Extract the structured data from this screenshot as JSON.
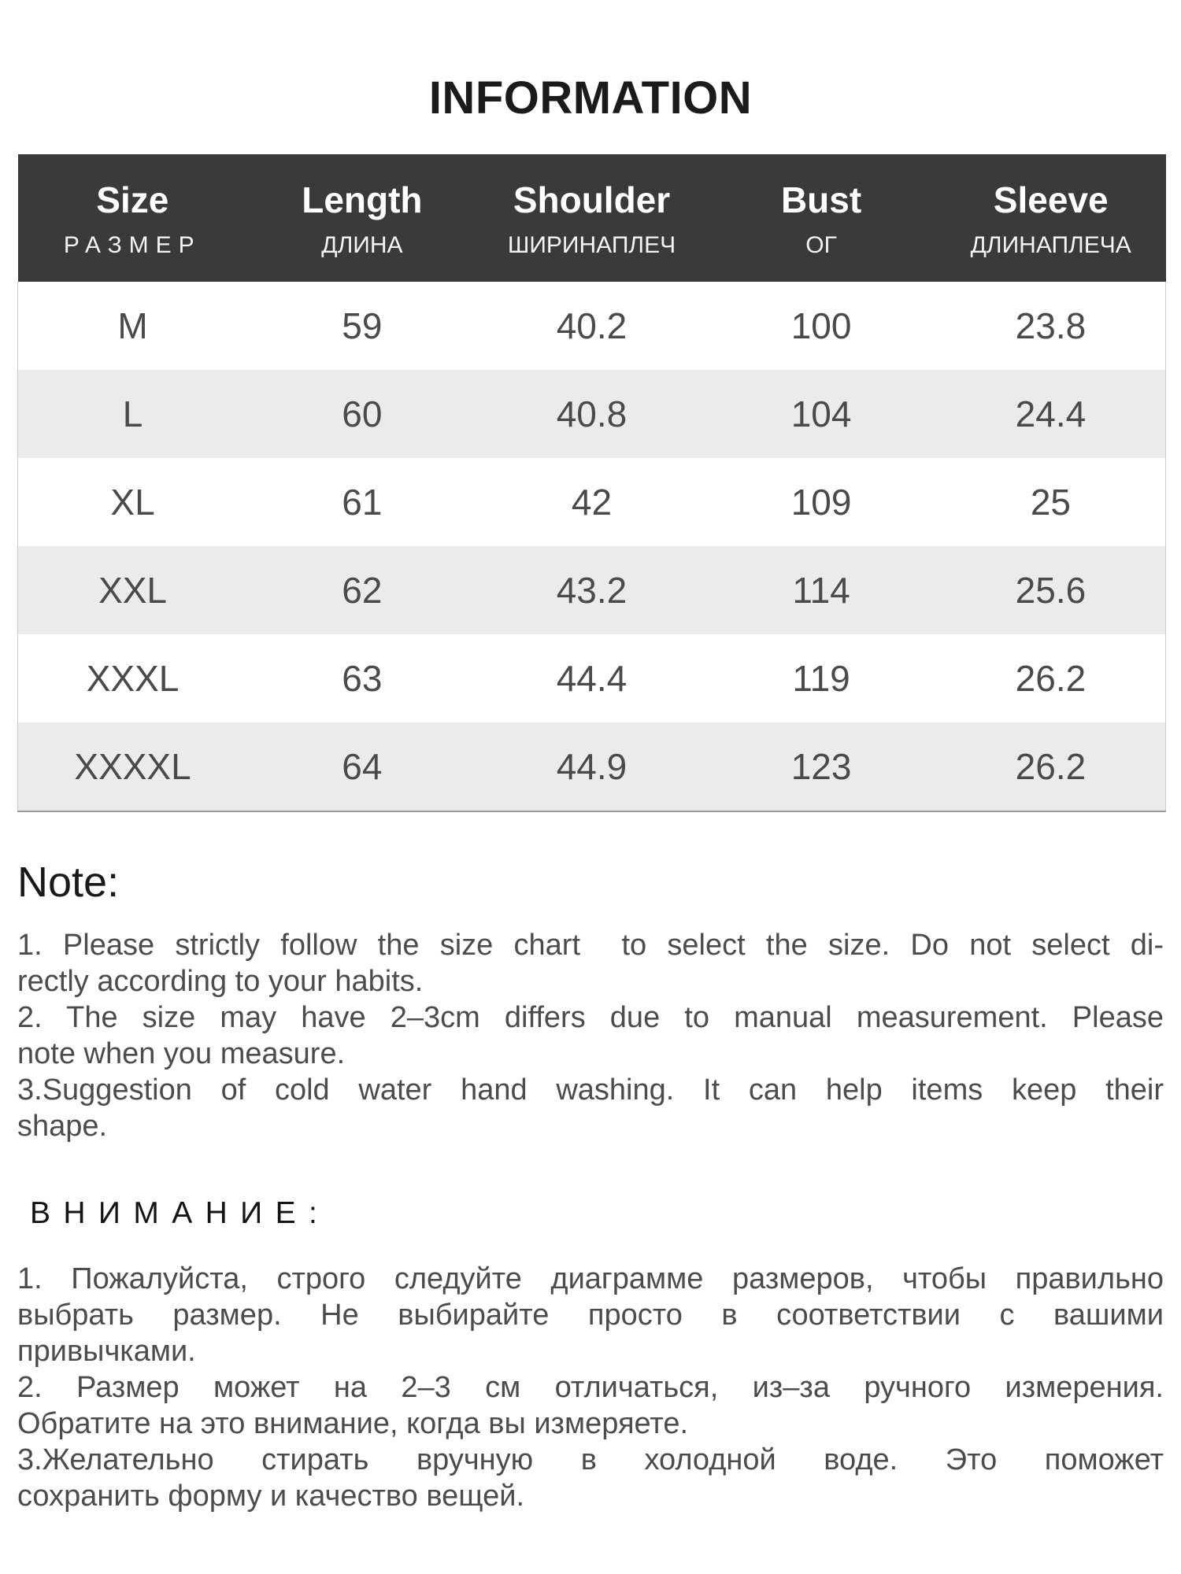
{
  "page": {
    "title": "INFORMATION"
  },
  "size_chart": {
    "columns": [
      {
        "en": "Size",
        "ru": "РАЗМЕР"
      },
      {
        "en": "Length",
        "ru": "ДЛИНА"
      },
      {
        "en": "Shoulder",
        "ru": "ШИРИНАПЛЕЧ"
      },
      {
        "en": "Bust",
        "ru": "ОГ"
      },
      {
        "en": "Sleeve",
        "ru": "ДЛИНАПЛЕЧА"
      }
    ],
    "rows": [
      [
        "M",
        "59",
        "40.2",
        "100",
        "23.8"
      ],
      [
        "L",
        "60",
        "40.8",
        "104",
        "24.4"
      ],
      [
        "XL",
        "61",
        "42",
        "109",
        "25"
      ],
      [
        "XXL",
        "62",
        "43.2",
        "114",
        "25.6"
      ],
      [
        "XXXL",
        "63",
        "44.4",
        "119",
        "26.2"
      ],
      [
        "XXXXL",
        "64",
        "44.9",
        "123",
        "26.2"
      ]
    ]
  },
  "note_en": {
    "heading": "Note:",
    "items": [
      {
        "lines": [
          "1. Please strictly follow the size chart  to select the size. Do not select di-",
          "rectly according to your habits."
        ]
      },
      {
        "lines": [
          "2. The size may have 2–3cm differs due to manual measurement. Please",
          "note when you measure."
        ]
      },
      {
        "lines": [
          "3.Suggestion of cold water hand washing. It can help items keep their",
          "shape."
        ]
      }
    ]
  },
  "note_ru": {
    "heading": "ВНИМАНИЕ:",
    "items": [
      {
        "lines": [
          "1. Пожалуйста, строго следуйте диаграмме размеров, чтобы правильно",
          "выбрать размер. Не выбирайте просто в соответствии с вашими",
          "привычками."
        ]
      },
      {
        "lines": [
          "2. Размер может на 2–3 см отличаться, из–за ручного измерения.",
          "Обратите на это внимание, когда вы измеряете."
        ]
      },
      {
        "lines": [
          "3.Желательно стирать вручную в холодной воде. Это поможет",
          "сохранить форму и качество вещей."
        ]
      }
    ]
  },
  "colors": {
    "header_bg": "#3a3a3c",
    "header_text": "#ffffff",
    "stripe_bg": "#ebebeb",
    "body_text": "#4a4a4a",
    "heading_text": "#1b1b1b"
  }
}
